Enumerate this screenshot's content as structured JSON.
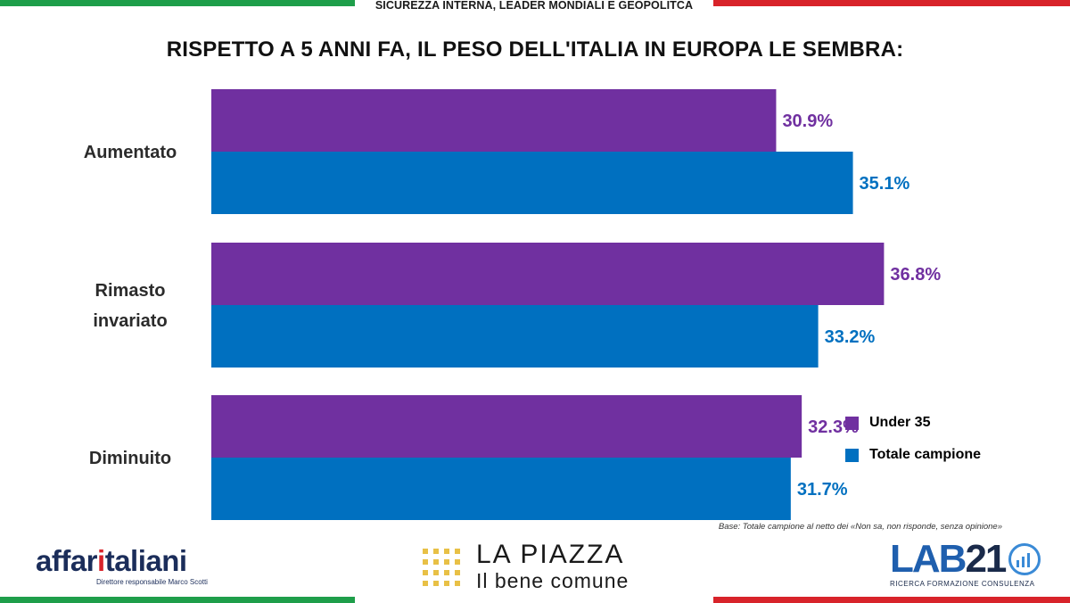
{
  "header": {
    "section_title": "SICUREZZA INTERNA, LEADER MONDIALI E GEOPOLITCA",
    "main_title": "RISPETTO A 5 ANNI FA, IL PESO DELL'ITALIA IN EUROPA LE SEMBRA:"
  },
  "chart_data": {
    "type": "bar",
    "orientation": "horizontal",
    "title": "RISPETTO A 5 ANNI FA, IL PESO DELL'ITALIA IN EUROPA LE SEMBRA:",
    "categories": [
      "Aumentato",
      "Rimasto invariato",
      "Diminuito"
    ],
    "category_lines": [
      [
        "Aumentato"
      ],
      [
        "Rimasto",
        "invariato"
      ],
      [
        "Diminuito"
      ]
    ],
    "series": [
      {
        "name": "Under 35",
        "values": [
          30.9,
          36.8,
          32.3
        ],
        "labels": [
          "30.9%",
          "36.8%",
          "32.3%"
        ],
        "color": "#7030a0"
      },
      {
        "name": "Totale campione",
        "values": [
          35.1,
          33.2,
          31.7
        ],
        "labels": [
          "35.1%",
          "33.2%",
          "31.7%"
        ],
        "color": "#0070c0"
      }
    ],
    "xlim": [
      0,
      40
    ],
    "grid": false,
    "legend": "bottom-right"
  },
  "legend": {
    "items": [
      {
        "label": "Under 35",
        "color": "#7030a0"
      },
      {
        "label": "Totale campione",
        "color": "#0070c0"
      }
    ]
  },
  "footnote": "Base: Totale campione al netto dei «Non sa, non risponde, senza opinione»",
  "logos": {
    "affari_pre": "affar",
    "affari_accent": "i",
    "affari_post": "taliani",
    "affari_sub": "Direttore responsabile Marco Scotti",
    "piazza_line1": "LA PIAZZA",
    "piazza_line2": "Il bene comune",
    "lab_main": "LAB",
    "lab_num": "21",
    "lab_sub": "RICERCA FORMAZIONE CONSULENZA"
  },
  "colors": {
    "purple": "#7030a0",
    "blue": "#0070c0",
    "green_stripe": "#1e9e4a",
    "red_stripe": "#d8232a"
  }
}
